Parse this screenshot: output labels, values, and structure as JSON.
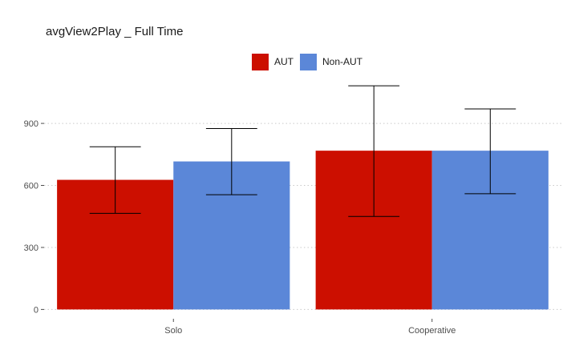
{
  "chart_data": {
    "type": "bar",
    "title": "avgView2Play _ Full Time",
    "xlabel": "",
    "ylabel": "",
    "categories": [
      "Solo",
      "Cooperative"
    ],
    "series": [
      {
        "name": "AUT",
        "color": "#cc0f00",
        "values": [
          627,
          768
        ],
        "error_low": [
          465,
          450
        ],
        "error_high": [
          787,
          1082
        ]
      },
      {
        "name": "Non-AUT",
        "color": "#5b87d8",
        "values": [
          716,
          768
        ],
        "error_low": [
          555,
          560
        ],
        "error_high": [
          875,
          970
        ]
      }
    ],
    "yticks": [
      0,
      300,
      600,
      900
    ],
    "ylim": [
      -45,
      1125
    ],
    "grid": "horizontal-dotted",
    "legend_position": "top"
  }
}
